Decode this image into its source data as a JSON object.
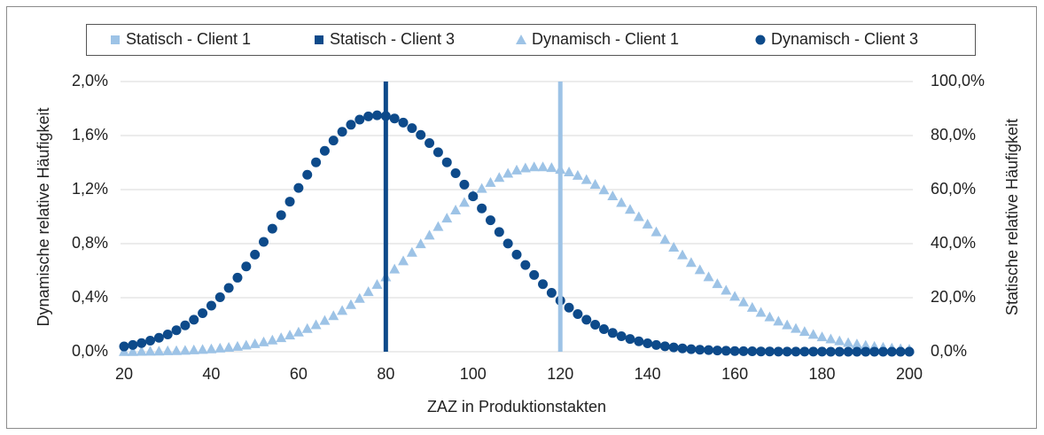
{
  "chart_data": {
    "type": "scatter",
    "xlabel": "ZAZ in Produktionstakten",
    "ylabel": "Dynamische relative Häufigkeit",
    "y2label": "Statische relative Häufigkeit",
    "xlim": [
      20,
      200
    ],
    "xticks": [
      20,
      40,
      60,
      80,
      100,
      120,
      140,
      160,
      180,
      200
    ],
    "ylim": [
      0,
      2
    ],
    "yticks": [
      {
        "value": 0,
        "label": "0,0%"
      },
      {
        "value": 0.4,
        "label": "0,4%"
      },
      {
        "value": 0.8,
        "label": "0,8%"
      },
      {
        "value": 1.2,
        "label": "1,2%"
      },
      {
        "value": 1.6,
        "label": "1,6%"
      },
      {
        "value": 2,
        "label": "2,0%"
      }
    ],
    "y2lim": [
      0,
      100
    ],
    "y2ticks": [
      {
        "value": 0,
        "label": "0,0%"
      },
      {
        "value": 20,
        "label": "20,0%"
      },
      {
        "value": 40,
        "label": "40,0%"
      },
      {
        "value": 60,
        "label": "60,0%"
      },
      {
        "value": 80,
        "label": "80,0%"
      },
      {
        "value": 100,
        "label": "100,0%"
      }
    ],
    "grid": true,
    "legend": "top",
    "series": [
      {
        "name": "Statisch - Client 1",
        "kind": "bar",
        "marker": "square",
        "color": "#9dc3e6",
        "axis": "y2",
        "x": [
          120
        ],
        "values": [
          100
        ]
      },
      {
        "name": "Statisch - Client 3",
        "kind": "bar",
        "marker": "square",
        "color": "#0d4a8a",
        "axis": "y2",
        "x": [
          80
        ],
        "values": [
          100
        ]
      },
      {
        "name": "Dynamisch - Client 1",
        "kind": "scatter",
        "marker": "triangle",
        "color": "#9dc3e6",
        "x": [
          20,
          22,
          24,
          26,
          28,
          30,
          32,
          34,
          36,
          38,
          40,
          42,
          44,
          46,
          48,
          50,
          52,
          54,
          56,
          58,
          60,
          62,
          64,
          66,
          68,
          70,
          72,
          74,
          76,
          78,
          80,
          82,
          84,
          86,
          88,
          90,
          92,
          94,
          96,
          98,
          100,
          102,
          104,
          106,
          108,
          110,
          112,
          114,
          116,
          118,
          120,
          122,
          124,
          126,
          128,
          130,
          132,
          134,
          136,
          138,
          140,
          142,
          144,
          146,
          148,
          150,
          152,
          154,
          156,
          158,
          160,
          162,
          164,
          166,
          168,
          170,
          172,
          174,
          176,
          178,
          180,
          182,
          184,
          186,
          188,
          190,
          192,
          194,
          196,
          198,
          200
        ],
        "values": [
          0.002,
          0.002,
          0.003,
          0.004,
          0.005,
          0.007,
          0.008,
          0.011,
          0.014,
          0.017,
          0.021,
          0.027,
          0.033,
          0.04,
          0.049,
          0.06,
          0.073,
          0.087,
          0.104,
          0.124,
          0.146,
          0.172,
          0.2,
          0.232,
          0.267,
          0.306,
          0.349,
          0.395,
          0.445,
          0.498,
          0.554,
          0.612,
          0.673,
          0.736,
          0.799,
          0.863,
          0.927,
          0.989,
          1.049,
          1.106,
          1.16,
          1.209,
          1.253,
          1.29,
          1.321,
          1.345,
          1.361,
          1.369,
          1.369,
          1.363,
          1.35,
          1.331,
          1.306,
          1.275,
          1.239,
          1.198,
          1.154,
          1.105,
          1.054,
          1.0,
          0.945,
          0.888,
          0.831,
          0.774,
          0.717,
          0.661,
          0.607,
          0.555,
          0.504,
          0.456,
          0.411,
          0.369,
          0.329,
          0.292,
          0.258,
          0.227,
          0.199,
          0.173,
          0.15,
          0.129,
          0.111,
          0.095,
          0.081,
          0.068,
          0.058,
          0.048,
          0.04,
          0.034,
          0.028,
          0.023,
          0.019
        ]
      },
      {
        "name": "Dynamisch - Client 3",
        "kind": "scatter",
        "marker": "circle",
        "color": "#0d4a8a",
        "x": [
          20,
          22,
          24,
          26,
          28,
          30,
          32,
          34,
          36,
          38,
          40,
          42,
          44,
          46,
          48,
          50,
          52,
          54,
          56,
          58,
          60,
          62,
          64,
          66,
          68,
          70,
          72,
          74,
          76,
          78,
          80,
          82,
          84,
          86,
          88,
          90,
          92,
          94,
          96,
          98,
          100,
          102,
          104,
          106,
          108,
          110,
          112,
          114,
          116,
          118,
          120,
          122,
          124,
          126,
          128,
          130,
          132,
          134,
          136,
          138,
          140,
          142,
          144,
          146,
          148,
          150,
          152,
          154,
          156,
          158,
          160,
          162,
          164,
          166,
          168,
          170,
          172,
          174,
          176,
          178,
          180,
          182,
          184,
          186,
          188,
          190,
          192,
          194,
          196,
          198,
          200
        ],
        "values": [
          0.039,
          0.05,
          0.064,
          0.082,
          0.103,
          0.128,
          0.159,
          0.195,
          0.237,
          0.285,
          0.341,
          0.403,
          0.472,
          0.548,
          0.631,
          0.719,
          0.813,
          0.911,
          1.011,
          1.111,
          1.212,
          1.31,
          1.402,
          1.487,
          1.563,
          1.628,
          1.68,
          1.718,
          1.742,
          1.75,
          1.744,
          1.726,
          1.696,
          1.655,
          1.605,
          1.544,
          1.476,
          1.402,
          1.321,
          1.237,
          1.15,
          1.061,
          0.973,
          0.886,
          0.801,
          0.719,
          0.642,
          0.568,
          0.5,
          0.436,
          0.379,
          0.326,
          0.279,
          0.237,
          0.2,
          0.167,
          0.139,
          0.115,
          0.094,
          0.077,
          0.062,
          0.05,
          0.04,
          0.032,
          0.025,
          0.019,
          0.015,
          0.012,
          0.009,
          0.007,
          0.005,
          0.004,
          0.003,
          0.002,
          0.002,
          0.001,
          0.001,
          0.001,
          0.001,
          0.001,
          0.001,
          0,
          0,
          0,
          0,
          0,
          0,
          0,
          0,
          0,
          0
        ]
      }
    ]
  }
}
